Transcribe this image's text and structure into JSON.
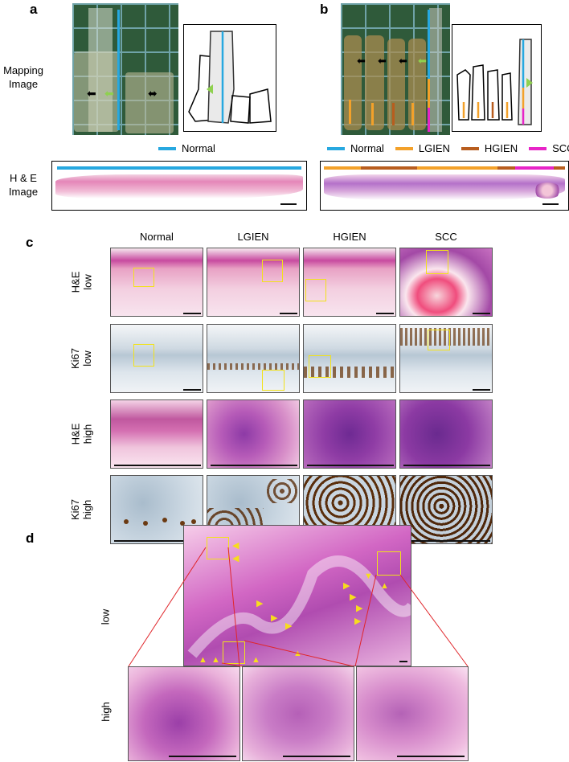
{
  "panels": {
    "a": "a",
    "b": "b",
    "c": "c",
    "d": "d"
  },
  "row_labels": {
    "mapping": [
      "Mapping",
      "Image"
    ],
    "he": "H & E",
    "he2": "Image"
  },
  "legend_a": [
    {
      "label": "Normal",
      "color": "#27a8e0"
    }
  ],
  "legend_b": [
    {
      "label": "Normal",
      "color": "#27a8e0"
    },
    {
      "label": "LGIEN",
      "color": "#f3a12a"
    },
    {
      "label": "HGIEN",
      "color": "#b85d1e"
    },
    {
      "label": "SCC",
      "color": "#e724c7"
    }
  ],
  "grid_c": {
    "columns": [
      "Normal",
      "LGIEN",
      "HGIEN",
      "SCC"
    ],
    "rows": [
      [
        "H&E",
        "low"
      ],
      [
        "Ki67",
        "low"
      ],
      [
        "H&E",
        "high"
      ],
      [
        "Ki67",
        "high"
      ]
    ]
  },
  "panel_d": {
    "low": "low",
    "high": "high"
  },
  "colors": {
    "normal": "#27a8e0",
    "lgien": "#f3a12a",
    "hgien": "#b85d1e",
    "scc": "#e724c7",
    "roi": "#f2e21a",
    "connector": "#e0262b"
  }
}
